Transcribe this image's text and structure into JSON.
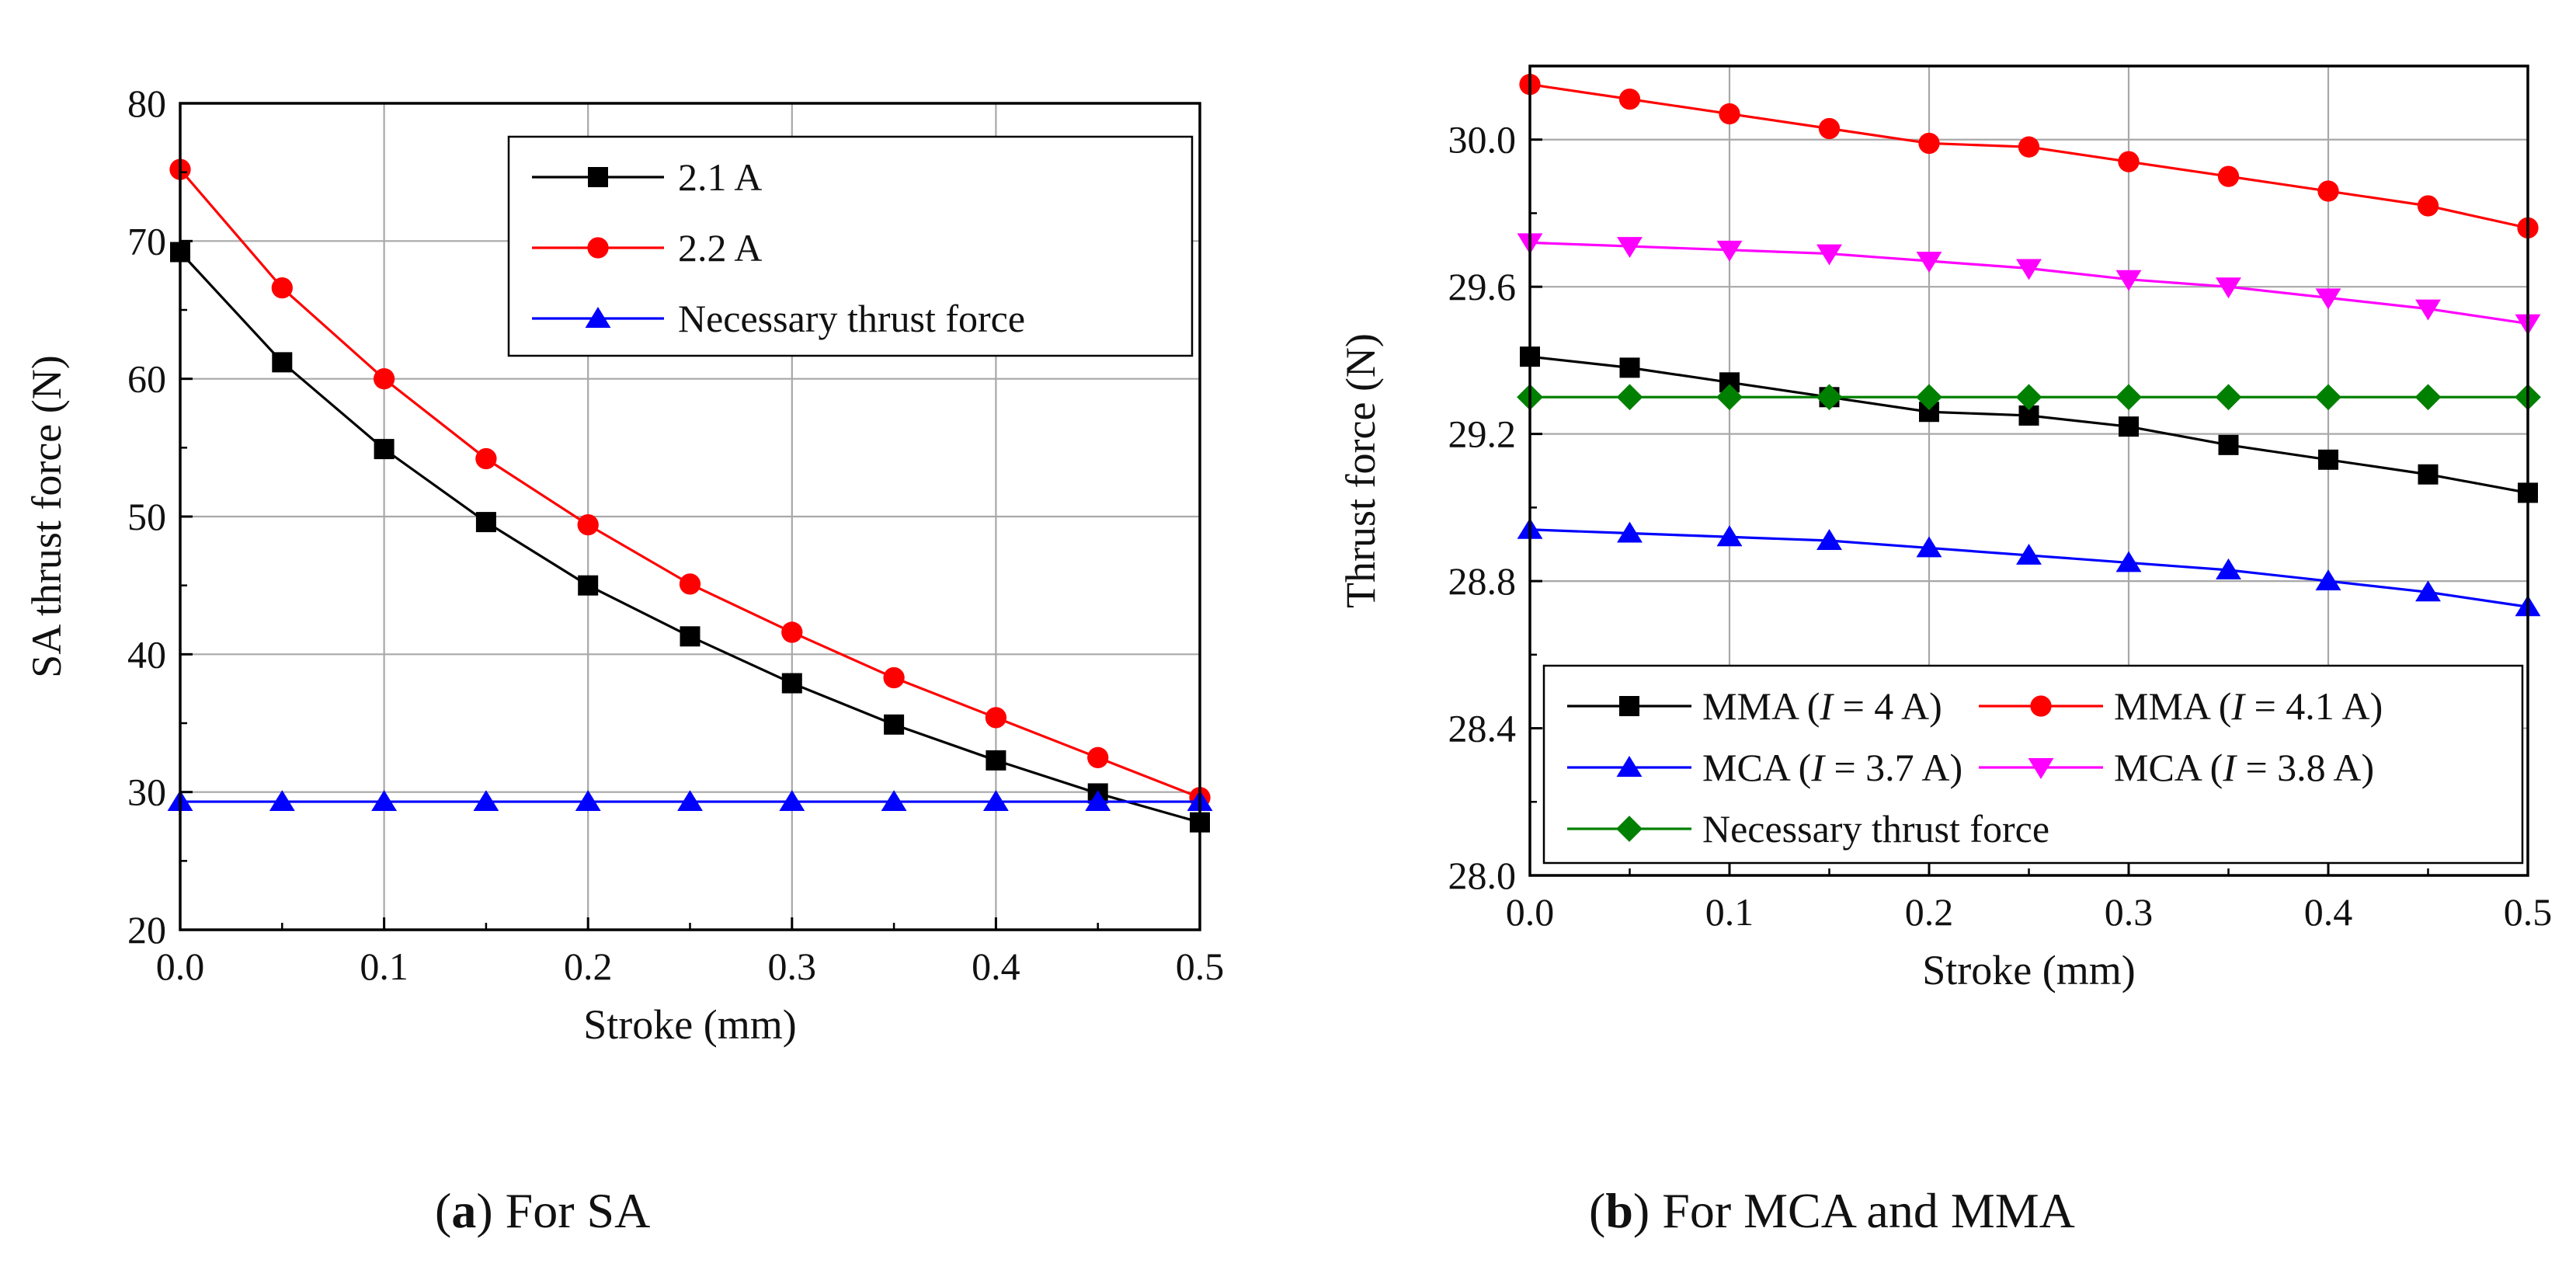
{
  "chart_data": [
    {
      "type": "line",
      "panel": "a",
      "caption": {
        "letter": "a",
        "text": "For SA"
      },
      "xlabel": "Stroke (mm)",
      "ylabel": "SA thrust force (N)",
      "xlim": [
        0,
        0.5
      ],
      "ylim": [
        20,
        80
      ],
      "xticks": [
        "0.0",
        "0.1",
        "0.2",
        "0.3",
        "0.4",
        "0.5"
      ],
      "yticks": [
        "20",
        "30",
        "40",
        "50",
        "60",
        "70",
        "80"
      ],
      "grid": true,
      "legend_position": "top-right",
      "x": [
        0,
        0.05,
        0.1,
        0.15,
        0.2,
        0.25,
        0.3,
        0.35,
        0.4,
        0.45,
        0.5
      ],
      "series": [
        {
          "name": "2.1 A",
          "color": "#000000",
          "marker": "square",
          "values": [
            69.2,
            61.2,
            54.9,
            49.6,
            45.0,
            41.3,
            37.9,
            34.9,
            32.3,
            29.9,
            27.8
          ]
        },
        {
          "name": "2.2 A",
          "color": "#ff0000",
          "marker": "circle",
          "values": [
            75.2,
            66.6,
            60.0,
            54.2,
            49.4,
            45.1,
            41.6,
            38.3,
            35.4,
            32.5,
            29.6
          ]
        },
        {
          "name": "Necessary thrust force",
          "color": "#0000ff",
          "marker": "triangle-up",
          "values": [
            29.3,
            29.3,
            29.3,
            29.3,
            29.3,
            29.3,
            29.3,
            29.3,
            29.3,
            29.3,
            29.3
          ]
        }
      ]
    },
    {
      "type": "line",
      "panel": "b",
      "caption": {
        "letter": "b",
        "text": "For MCA and MMA"
      },
      "xlabel": "Stroke (mm)",
      "ylabel": "Thrust force (N)",
      "xlim": [
        0,
        0.5
      ],
      "ylim": [
        28.0,
        30.2
      ],
      "xticks": [
        "0.0",
        "0.1",
        "0.2",
        "0.3",
        "0.4",
        "0.5"
      ],
      "yticks": [
        "28.0",
        "28.4",
        "28.8",
        "29.2",
        "29.6",
        "30.0"
      ],
      "grid": true,
      "legend_position": "bottom-left",
      "x": [
        0,
        0.05,
        0.1,
        0.15,
        0.2,
        0.25,
        0.3,
        0.35,
        0.4,
        0.45,
        0.5
      ],
      "series": [
        {
          "name": "MMA (I = 4 A)",
          "prefix": "MMA (",
          "var": "I",
          "suffix": " = 4 A)",
          "color": "#000000",
          "marker": "square",
          "values": [
            29.41,
            29.38,
            29.34,
            29.3,
            29.26,
            29.25,
            29.22,
            29.17,
            29.13,
            29.09,
            29.04
          ]
        },
        {
          "name": "MMA (I = 4.1 A)",
          "prefix": "MMA (",
          "var": "I",
          "suffix": " = 4.1 A)",
          "color": "#ff0000",
          "marker": "circle",
          "values": [
            30.15,
            30.11,
            30.07,
            30.03,
            29.99,
            29.98,
            29.94,
            29.9,
            29.86,
            29.82,
            29.76
          ]
        },
        {
          "name": "MCA (I = 3.7 A)",
          "prefix": "MCA (",
          "var": "I",
          "suffix": " = 3.7 A)",
          "color": "#0000ff",
          "marker": "triangle-up",
          "values": [
            28.94,
            28.93,
            28.92,
            28.91,
            28.89,
            28.87,
            28.85,
            28.83,
            28.8,
            28.77,
            28.73
          ]
        },
        {
          "name": "MCA (I = 3.8 A)",
          "prefix": "MCA (",
          "var": "I",
          "suffix": " = 3.8 A)",
          "color": "#ff00ff",
          "marker": "triangle-down",
          "values": [
            29.72,
            29.71,
            29.7,
            29.69,
            29.67,
            29.65,
            29.62,
            29.6,
            29.57,
            29.54,
            29.5
          ]
        },
        {
          "name": "Necessary thrust force",
          "prefix": "Necessary thrust force",
          "var": "",
          "suffix": "",
          "color": "#008000",
          "marker": "diamond",
          "values": [
            29.3,
            29.3,
            29.3,
            29.3,
            29.3,
            29.3,
            29.3,
            29.3,
            29.3,
            29.3,
            29.3
          ]
        }
      ]
    }
  ]
}
